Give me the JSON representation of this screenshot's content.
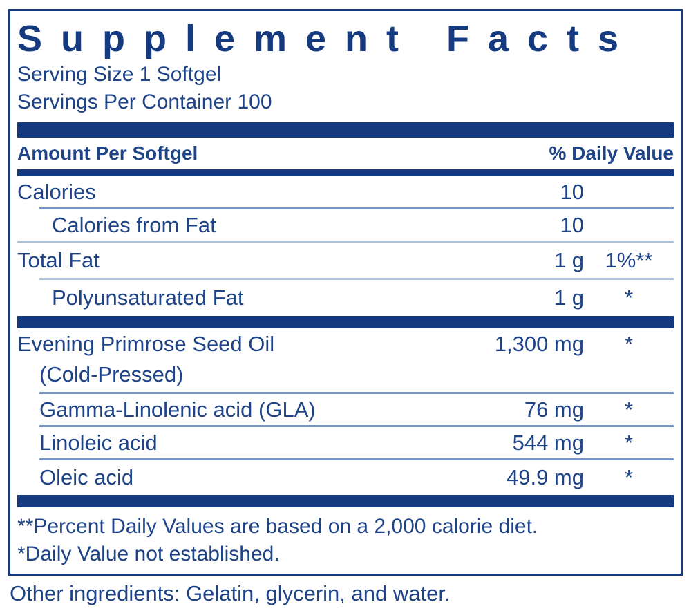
{
  "title": "Supplement Facts",
  "serving_info": {
    "serving_size": "Serving Size 1 Softgel",
    "servings_per_container": "Servings Per Container 100"
  },
  "table": {
    "header": {
      "amount_col": "Amount Per Softgel",
      "dv_col": "% Daily Value"
    },
    "rows": [
      {
        "name": "Calories",
        "amount": "10",
        "dv": "",
        "indent": 0,
        "divider_after": "medium-indent"
      },
      {
        "name": "Calories from Fat",
        "amount": "10",
        "dv": "",
        "indent": 1,
        "divider_after": "light-full"
      },
      {
        "name": "Total Fat",
        "amount": "1 g",
        "dv": "1%**",
        "indent": 0,
        "divider_after": "light-indent"
      },
      {
        "name": "Polyunsaturated Fat",
        "amount": "1 g",
        "dv": "*",
        "indent": 1,
        "divider_after": "bar"
      },
      {
        "name": "Evening Primrose Seed Oil",
        "name_line2": "(Cold-Pressed)",
        "amount": "1,300 mg",
        "dv": "*",
        "indent": 0,
        "divider_after": "medium-indent"
      },
      {
        "name": "Gamma-Linolenic acid (GLA)",
        "amount": "76 mg",
        "dv": "*",
        "indent": 2,
        "divider_after": "medium-indent"
      },
      {
        "name": "Linoleic acid",
        "amount": "544 mg",
        "dv": "*",
        "indent": 2,
        "divider_after": "medium-indent"
      },
      {
        "name": "Oleic acid",
        "amount": "49.9 mg",
        "dv": "*",
        "indent": 2,
        "divider_after": "bar"
      }
    ]
  },
  "footnotes": {
    "percent_dv": "**Percent Daily Values are based on a 2,000 calorie diet.",
    "dv_not_established": "*Daily Value not established."
  },
  "other_ingredients": "Other ingredients: Gelatin, glycerin, and water.",
  "colors": {
    "navy": "#153a7f",
    "text": "#1e4487",
    "rule_medium": "#7596c4",
    "rule_light": "#afc1db"
  }
}
